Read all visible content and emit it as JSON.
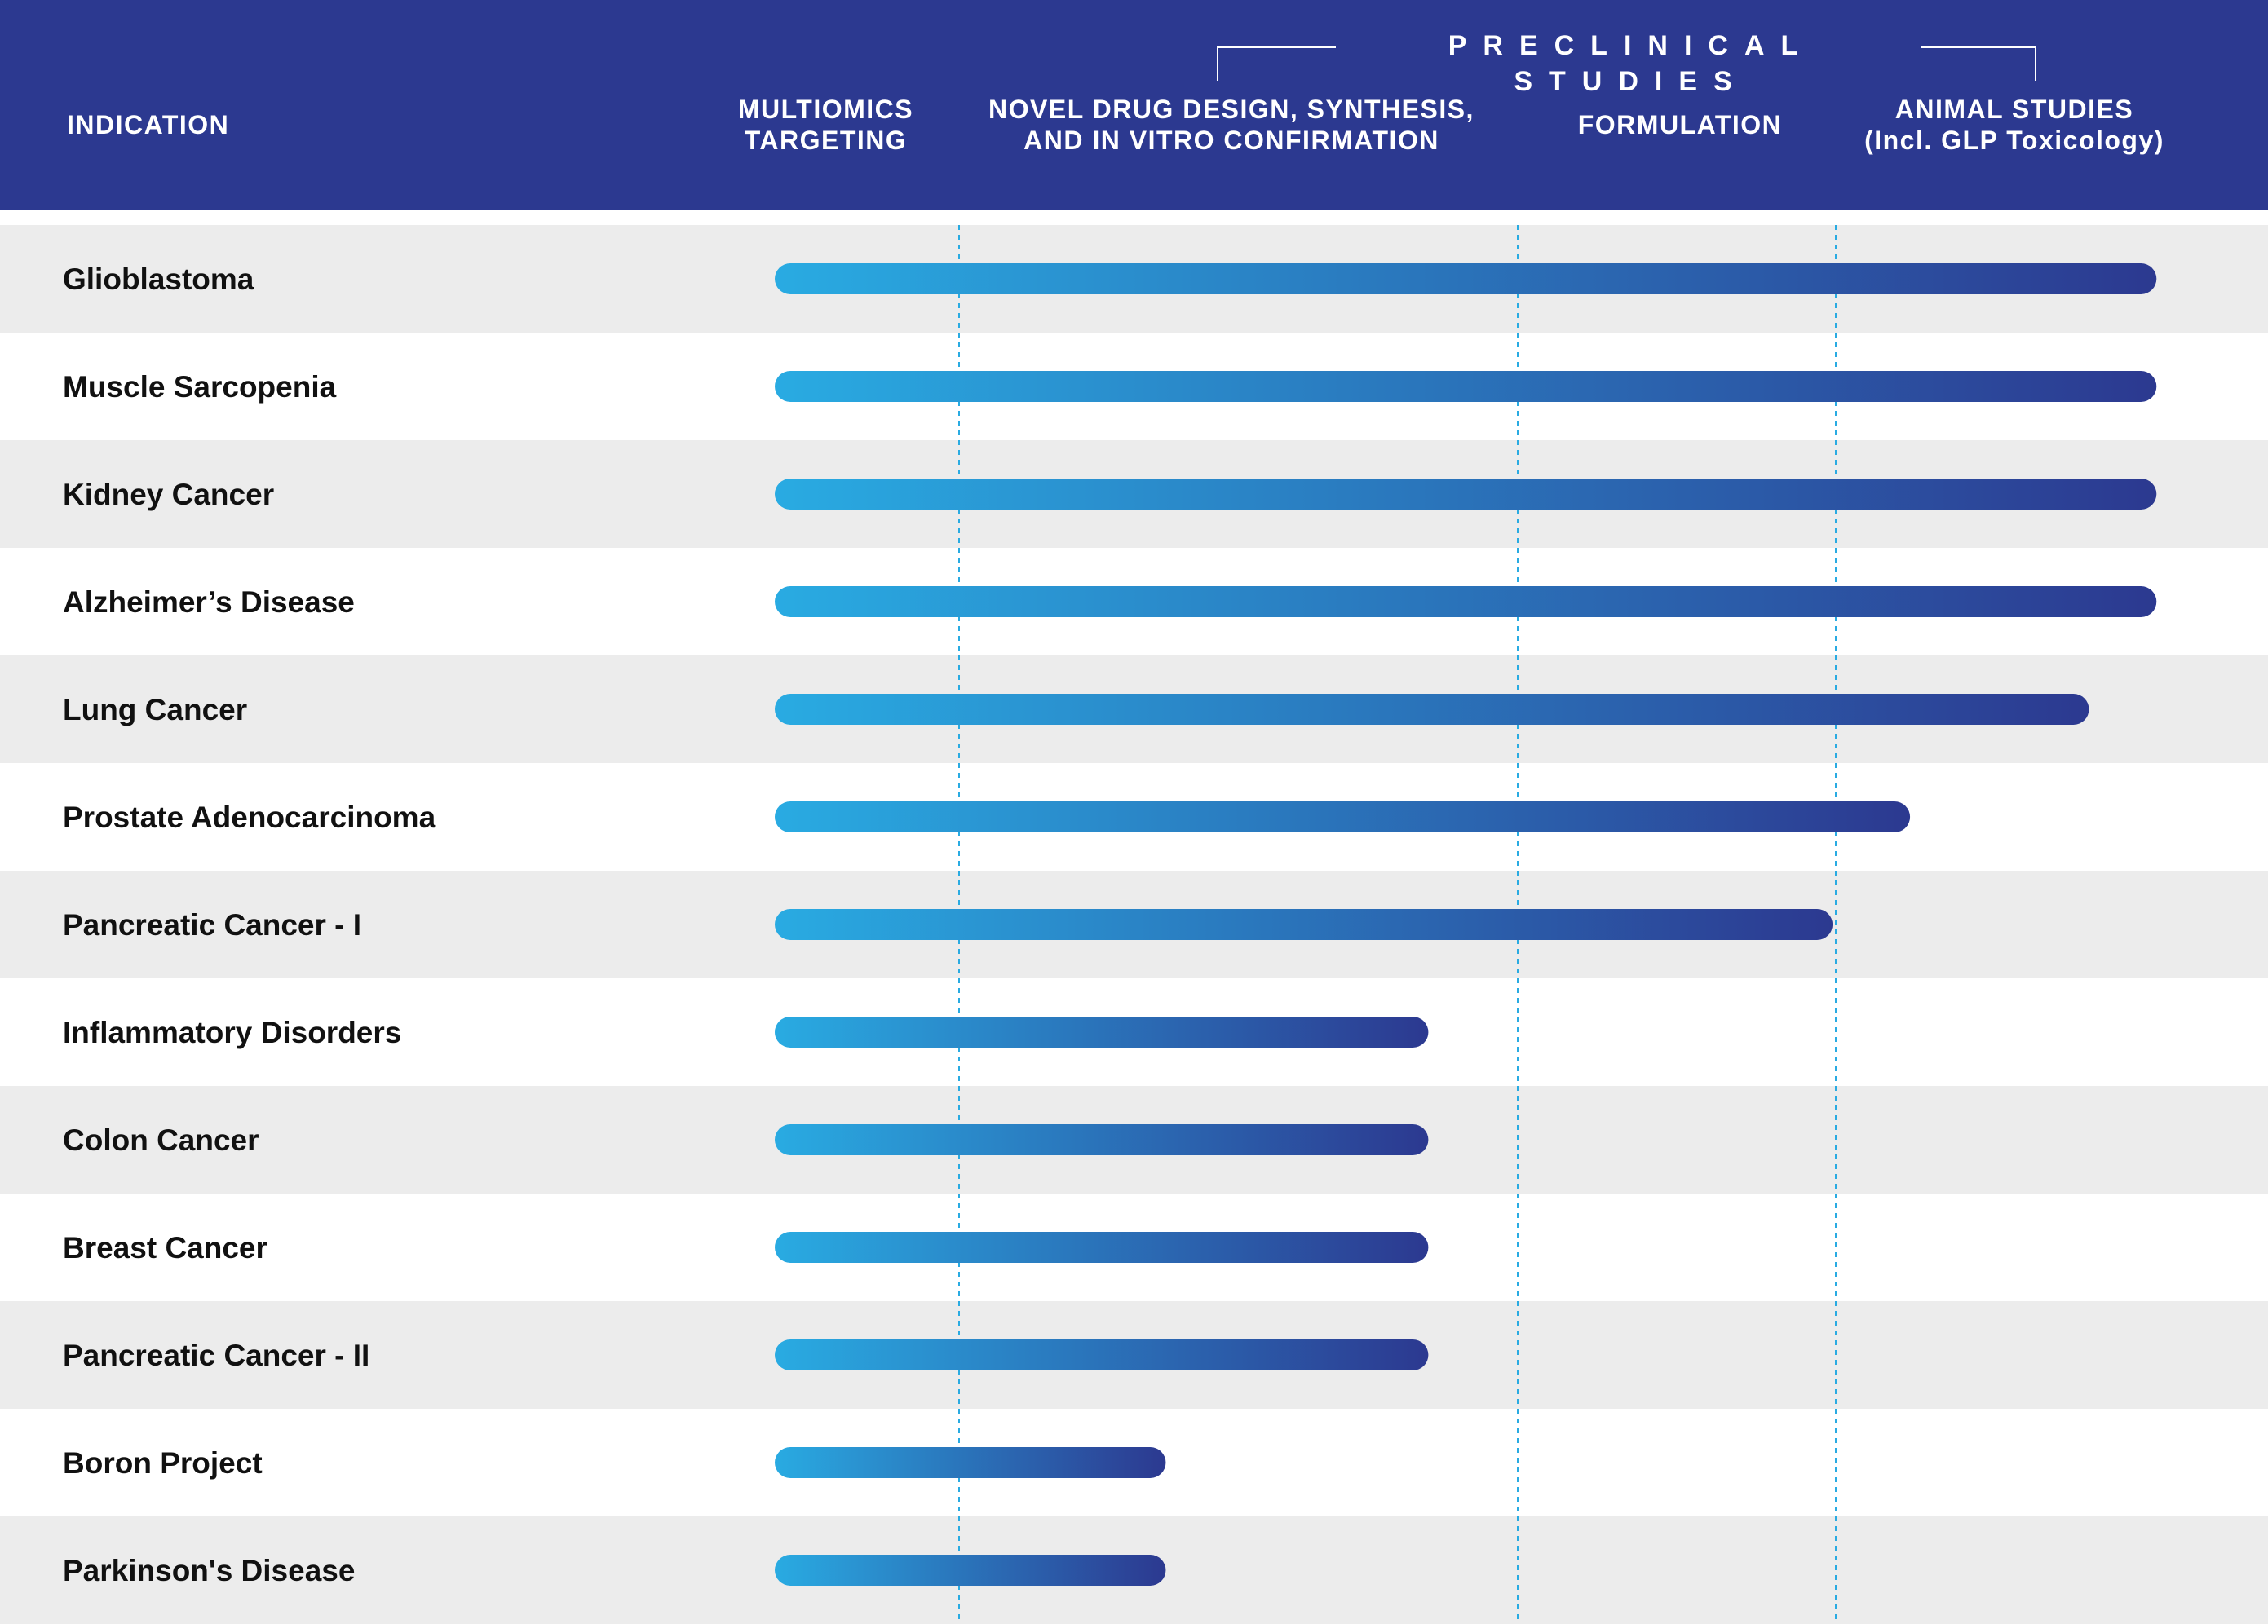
{
  "header": {
    "indication": "INDICATION",
    "preclinical": "PRECLINICAL STUDIES",
    "multiomics": "MULTIOMICS\nTARGETING",
    "novel": "NOVEL DRUG DESIGN, SYNTHESIS,\nAND IN VITRO CONFIRMATION",
    "formulation": "FORMULATION",
    "animal": "ANIMAL STUDIES\n(Incl. GLP Toxicology)"
  },
  "colors": {
    "header_bg": "#2c3990",
    "row_alt": "#ececec",
    "bar_start": "#29abe2",
    "bar_end": "#2c3990",
    "divider": "#29abe2"
  },
  "chart_data": {
    "type": "bar",
    "orientation": "horizontal",
    "stages": [
      "Multiomics Targeting",
      "Novel Drug Design, Synthesis, and In Vitro Confirmation",
      "Formulation",
      "Animal Studies (Incl. GLP Toxicology)"
    ],
    "stage_boundaries": [
      1,
      2,
      3,
      4
    ],
    "categories": [
      "Glioblastoma",
      "Muscle Sarcopenia",
      "Kidney Cancer",
      "Alzheimer’s Disease",
      "Lung Cancer",
      "Prostate Adenocarcinoma",
      "Pancreatic Cancer - I",
      "Inflammatory Disorders",
      "Colon Cancer",
      "Breast Cancer",
      "Pancreatic Cancer - II",
      "Boron Project",
      "Parkinson's Disease"
    ],
    "values": [
      3.95,
      3.95,
      3.95,
      3.95,
      3.75,
      3.22,
      2.99,
      1.84,
      1.84,
      1.84,
      1.84,
      1.37,
      1.37
    ],
    "xlim": [
      0,
      4
    ]
  }
}
